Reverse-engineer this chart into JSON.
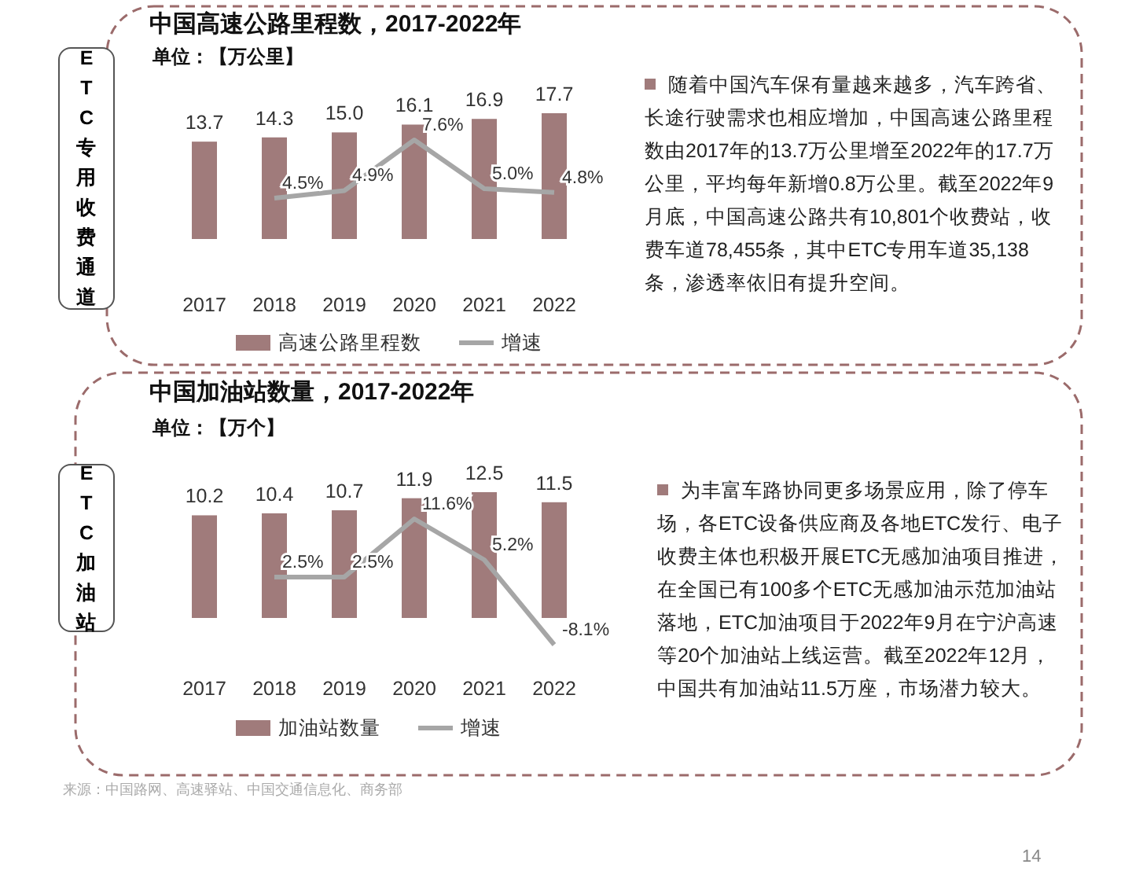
{
  "chart_data": [
    {
      "type": "bar",
      "title": "中国高速公路里程数，2017-2022年",
      "subtitle": "单位：【万公里】",
      "categories": [
        "2017",
        "2018",
        "2019",
        "2020",
        "2021",
        "2022"
      ],
      "legend": "bottom",
      "series": [
        {
          "name": "高速公路里程数",
          "color": "#a07b7b",
          "values": [
            13.7,
            14.3,
            15.0,
            16.1,
            16.9,
            17.7
          ],
          "value_labels": [
            "13.7",
            "14.3",
            "15.0",
            "16.1",
            "16.9",
            "17.7"
          ]
        },
        {
          "name": "增速",
          "type": "line",
          "axis": "y2",
          "color": "#a6a6a6",
          "values": [
            null,
            4.5,
            4.9,
            7.6,
            5.0,
            4.8
          ],
          "value_labels": [
            null,
            "4.5%",
            "4.9%",
            "7.6%",
            "5.0%",
            "4.8%"
          ]
        }
      ],
      "annotations": [
        "ETC专用收费通道",
        "随着中国汽车保有量越来越多，汽车跨省、长途行驶需求也相应增加，中国高速公路里程数由2017年的13.7万公里增至2022年的17.7万公里，平均每年新增0.8万公里。截至2022年9月底，中国高速公路共有10,801个收费站，收费车道78,455条，其中ETC专用车道35,138条，渗透率依旧有提升空间。"
      ]
    },
    {
      "type": "bar",
      "title": "中国加油站数量，2017-2022年",
      "subtitle": "单位：【万个】",
      "categories": [
        "2017",
        "2018",
        "2019",
        "2020",
        "2021",
        "2022"
      ],
      "legend": "bottom",
      "series": [
        {
          "name": "加油站数量",
          "color": "#a07b7b",
          "values": [
            10.2,
            10.4,
            10.7,
            11.9,
            12.5,
            11.5
          ],
          "value_labels": [
            "10.2",
            "10.4",
            "10.7",
            "11.9",
            "12.5",
            "11.5"
          ]
        },
        {
          "name": "增速",
          "type": "line",
          "axis": "y2",
          "color": "#a6a6a6",
          "values": [
            null,
            2.5,
            2.5,
            11.6,
            5.2,
            -8.1
          ],
          "value_labels": [
            null,
            "2.5%",
            "2.5%",
            "11.6%",
            "5.2%",
            "-8.1%"
          ]
        }
      ],
      "annotations": [
        "ETC加油站",
        "为丰富车路协同更多场景应用，除了停车场，各ETC设备供应商及各地ETC发行、电子收费主体也积极开展ETC无感加油项目推进，在全国已有100多个ETC无感加油示范加油站落地，ETC加油项目于2022年9月在宁沪高速等20个加油站上线运营。截至2022年12月，中国共有加油站11.5万座，市场潜力较大。",
        "来源：中国路网、高速驿站、中国交通信息化、商务部",
        "14"
      ]
    }
  ]
}
